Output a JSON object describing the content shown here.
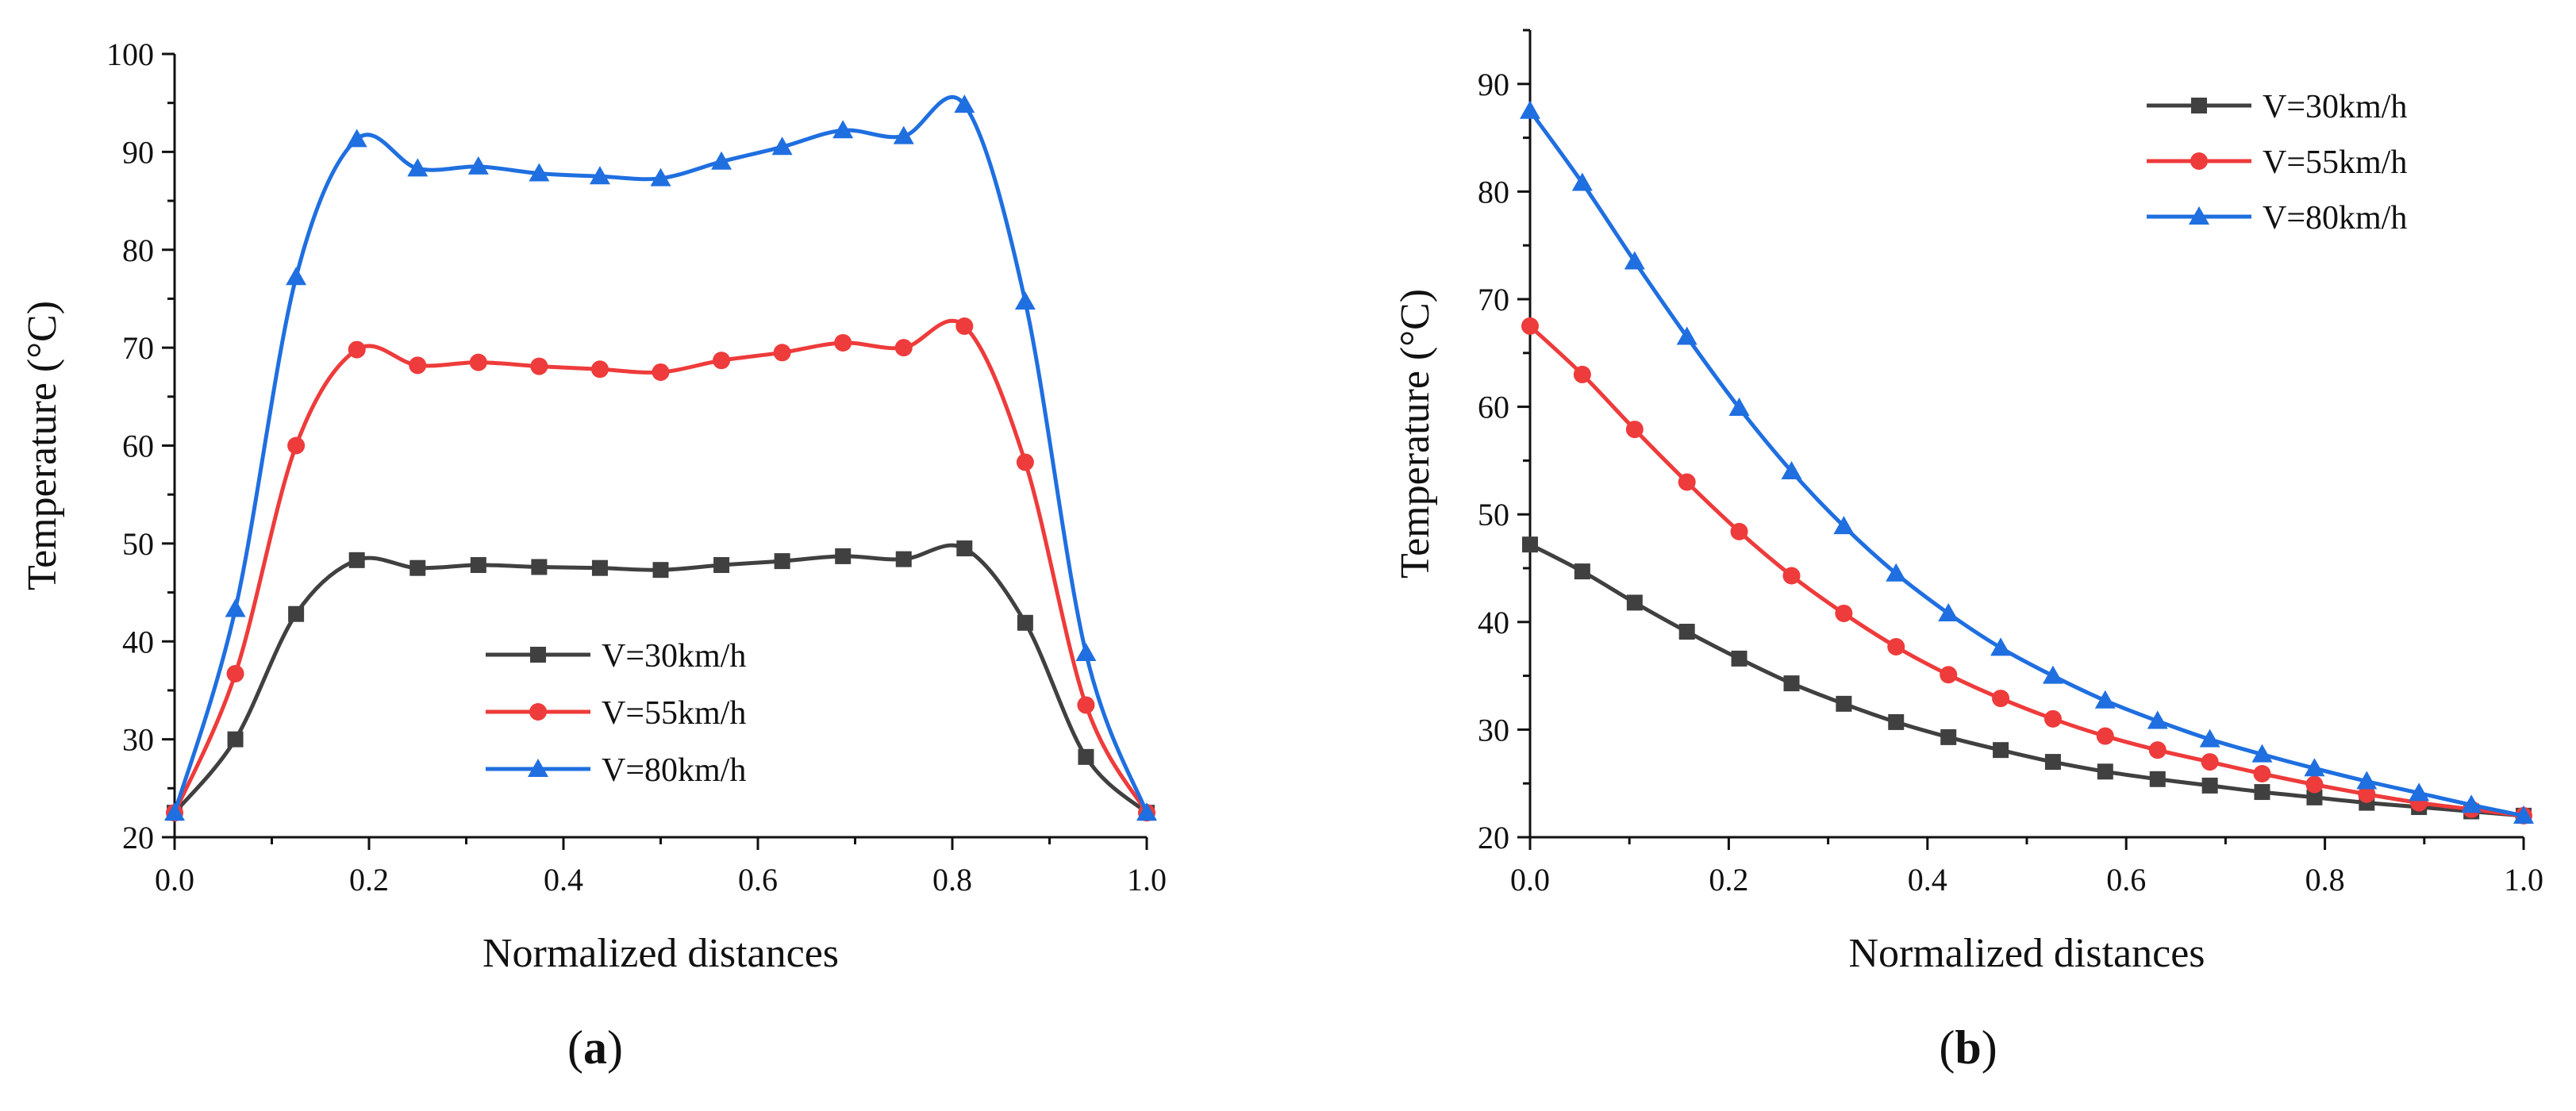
{
  "figure": {
    "panel_labels": [
      {
        "open": "(",
        "letter": "a",
        "close": ")"
      },
      {
        "open": "(",
        "letter": "b",
        "close": ")"
      }
    ]
  },
  "chart_data": [
    {
      "type": "line",
      "panel": "a",
      "xlabel": "Normalized distances",
      "ylabel": "Temperature (°C)",
      "xlim": [
        0.0,
        1.0
      ],
      "ylim": [
        20,
        100
      ],
      "xticks": [
        0.0,
        0.2,
        0.4,
        0.6,
        0.8,
        1.0
      ],
      "xtick_labels": [
        "0.0",
        "0.2",
        "0.4",
        "0.6",
        "0.8",
        "1.0"
      ],
      "yticks": [
        20,
        30,
        40,
        50,
        60,
        70,
        80,
        90,
        100
      ],
      "ytick_labels": [
        "20",
        "30",
        "40",
        "50",
        "60",
        "70",
        "80",
        "90",
        "100"
      ],
      "grid": false,
      "smooth": true,
      "legend_position": "lower-center",
      "x": [
        0.0,
        0.0625,
        0.125,
        0.1875,
        0.25,
        0.3125,
        0.375,
        0.4375,
        0.5,
        0.5625,
        0.625,
        0.6875,
        0.75,
        0.8125,
        0.875,
        0.9375,
        1.0
      ],
      "series": [
        {
          "name": "V=30km/h",
          "color": "#404040",
          "marker": "square",
          "values": [
            22.5,
            30.0,
            42.8,
            48.3,
            47.5,
            47.8,
            47.6,
            47.5,
            47.3,
            47.8,
            48.2,
            48.7,
            48.4,
            49.5,
            41.9,
            28.2,
            22.5
          ]
        },
        {
          "name": "V=55km/h",
          "color": "#ee3b3b",
          "marker": "circle",
          "values": [
            22.5,
            36.7,
            60.0,
            69.8,
            68.2,
            68.5,
            68.1,
            67.8,
            67.5,
            68.7,
            69.5,
            70.5,
            70.0,
            72.2,
            58.3,
            33.5,
            22.5
          ]
        },
        {
          "name": "V=80km/h",
          "color": "#1f6fe0",
          "marker": "triangle",
          "values": [
            22.5,
            43.3,
            77.2,
            91.3,
            88.3,
            88.5,
            87.8,
            87.5,
            87.3,
            89.0,
            90.5,
            92.2,
            91.6,
            94.8,
            74.7,
            38.8,
            22.5
          ]
        }
      ]
    },
    {
      "type": "line",
      "panel": "b",
      "xlabel": "Normalized distances",
      "ylabel": "Temperature (°C)",
      "xlim": [
        0.0,
        1.0
      ],
      "ylim": [
        20,
        95
      ],
      "xticks": [
        0.0,
        0.2,
        0.4,
        0.6,
        0.8,
        1.0
      ],
      "xtick_labels": [
        "0.0",
        "0.2",
        "0.4",
        "0.6",
        "0.8",
        "1.0"
      ],
      "yticks": [
        20,
        30,
        40,
        50,
        60,
        70,
        80,
        90
      ],
      "ytick_labels": [
        "20",
        "30",
        "40",
        "50",
        "60",
        "70",
        "80",
        "90"
      ],
      "grid": false,
      "smooth": true,
      "legend_position": "top-right",
      "x": [
        0.0,
        0.0526,
        0.1053,
        0.1579,
        0.2105,
        0.2632,
        0.3158,
        0.3684,
        0.4211,
        0.4737,
        0.5263,
        0.5789,
        0.6316,
        0.6842,
        0.7368,
        0.7895,
        0.8421,
        0.8947,
        0.9474,
        1.0
      ],
      "series": [
        {
          "name": "V=30km/h",
          "color": "#404040",
          "marker": "square",
          "values": [
            47.2,
            44.7,
            41.8,
            39.1,
            36.6,
            34.3,
            32.4,
            30.7,
            29.3,
            28.1,
            27.0,
            26.1,
            25.4,
            24.8,
            24.2,
            23.7,
            23.2,
            22.8,
            22.4,
            22.0
          ]
        },
        {
          "name": "V=55km/h",
          "color": "#ee3b3b",
          "marker": "circle",
          "values": [
            67.5,
            63.0,
            57.9,
            53.0,
            48.4,
            44.3,
            40.8,
            37.7,
            35.1,
            32.9,
            31.0,
            29.4,
            28.1,
            27.0,
            25.9,
            24.9,
            24.0,
            23.2,
            22.6,
            22.0
          ]
        },
        {
          "name": "V=80km/h",
          "color": "#1f6fe0",
          "marker": "triangle",
          "values": [
            87.5,
            80.8,
            73.5,
            66.5,
            59.9,
            54.0,
            48.9,
            44.5,
            40.8,
            37.6,
            35.0,
            32.7,
            30.8,
            29.1,
            27.7,
            26.4,
            25.2,
            24.1,
            23.0,
            22.0
          ]
        }
      ]
    }
  ]
}
